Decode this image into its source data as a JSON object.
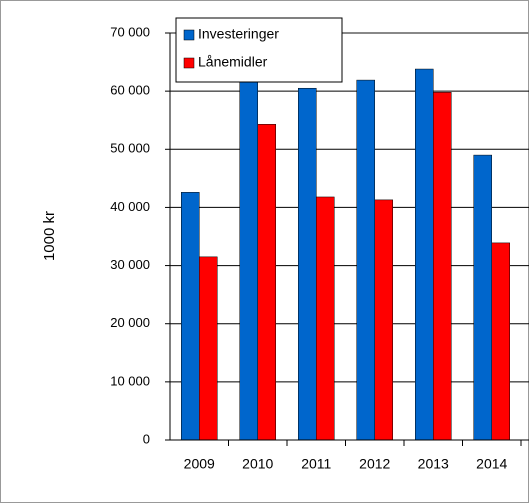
{
  "chart_data": {
    "type": "bar",
    "y_label": "1000 kr",
    "categories": [
      "2009",
      "2010",
      "2011",
      "2012",
      "2013",
      "2014"
    ],
    "series": [
      {
        "name": "Investeringer",
        "color": "#0066cc",
        "values": [
          42600,
          64000,
          60500,
          61900,
          63800,
          49000
        ]
      },
      {
        "name": "Lånemidler",
        "color": "#ff0000",
        "values": [
          31500,
          54300,
          41800,
          41300,
          59800,
          33900
        ]
      }
    ],
    "ylim": [
      0,
      70000
    ],
    "yticks": [
      0,
      {
        "value": 10000,
        "label": "10 000"
      },
      {
        "value": 20000,
        "label": "20 000"
      },
      {
        "value": 30000,
        "label": "30 000"
      },
      {
        "value": 40000,
        "label": "40 000"
      },
      {
        "value": 50000,
        "label": "50 000"
      },
      {
        "value": 60000,
        "label": "60 000"
      },
      {
        "value": 70000,
        "label": "70 000"
      }
    ],
    "grid": true,
    "legend": "top-left"
  }
}
